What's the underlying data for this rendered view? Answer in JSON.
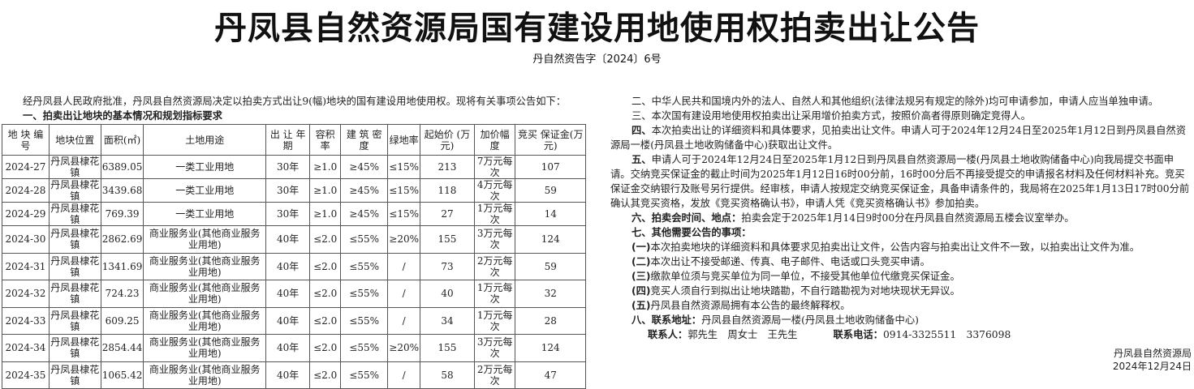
{
  "title": "丹凤县自然资源局国有建设用地使用权拍卖出让公告",
  "doc_number": "丹自然资告字〔2024〕6号",
  "intro": "经丹凤县人民政府批准，丹凤县自然资源局决定以拍卖方式出让9(幅)地块的国有建设用地使用权。现将有关事项公告如下：",
  "section1_title": "一、拍卖出让地块的基本情况和规划指标要求",
  "table": {
    "headers": [
      "地 块 编 号",
      "地块位置",
      "面积(㎡)",
      "土地用途",
      "出 让 年 期",
      "容积率",
      "建 筑 密 度",
      "绿地率",
      "起始价 (万元)",
      "加价幅度",
      "竞买 保证金(万元)"
    ],
    "rows": [
      [
        "2024-27",
        "丹凤县棣花镇",
        "6389.05",
        "一类工业用地",
        "30年",
        "≥1.0",
        "≥45%",
        "≤15%",
        "213",
        "7万元每次",
        "107"
      ],
      [
        "2024-28",
        "丹凤县棣花镇",
        "3439.68",
        "一类工业用地",
        "30年",
        "≥1.0",
        "≥45%",
        "≤15%",
        "118",
        "4万元每次",
        "59"
      ],
      [
        "2024-29",
        "丹凤县棣花镇",
        "769.39",
        "一类工业用地",
        "30年",
        "≥1.0",
        "≥45%",
        "≤15%",
        "27",
        "1万元每次",
        "14"
      ],
      [
        "2024-30",
        "丹凤县棣花镇",
        "2862.69",
        "商业服务业(其他商业服务业用地)",
        "40年",
        "≤2.0",
        "≤55%",
        "≥20%",
        "155",
        "3万元每次",
        "124"
      ],
      [
        "2024-31",
        "丹凤县棣花镇",
        "1341.69",
        "商业服务业(其他商业服务业用地)",
        "40年",
        "≤2.0",
        "≤55%",
        "/",
        "73",
        "2万元每次",
        "59"
      ],
      [
        "2024-32",
        "丹凤县棣花镇",
        "724.23",
        "商业服务业(其他商业服务业用地)",
        "40年",
        "≤2.0",
        "≤55%",
        "/",
        "40",
        "1万元每次",
        "32"
      ],
      [
        "2024-33",
        "丹凤县棣花镇",
        "609.25",
        "商业服务业(其他商业服务业用地)",
        "40年",
        "≤2.0",
        "≤55%",
        "/",
        "34",
        "1万元每次",
        "28"
      ],
      [
        "2024-34",
        "丹凤县棣花镇",
        "2854.44",
        "商业服务业(其他商业服务业用地)",
        "40年",
        "≤2.0",
        "≤55%",
        "≥20%",
        "155",
        "3万元每次",
        "124"
      ],
      [
        "2024-35",
        "丹凤县棣花镇",
        "1065.42",
        "商业服务业(其他商业服务业用地)",
        "40年",
        "≤2.0",
        "≤55%",
        "/",
        "58",
        "2万元每次",
        "47"
      ]
    ]
  },
  "right": {
    "s2": "二、中华人民共和国境内外的法人、自然人和其他组织(法律法规另有规定的除外)均可申请参加，申请人应当单独申请。",
    "s3": "三、本次国有建设用地使用权拍卖出让采用增价拍卖方式，按照价高者得原则确定竞得人。",
    "s4_head": "四、",
    "s4": "本次拍卖出让的详细资料和具体要求，见拍卖出让文件。申请人可于2024年12月24日至2025年1月12日到丹凤县自然资源局一楼(丹凤县土地收购储备中心)获取出让文件。",
    "s5_head": "五、",
    "s5": "申请人可于2024年12月24日至2025年1月12日到丹凤县自然资源局一楼(丹凤县土地收购储备中心)向我局提交书面申请。交纳竞买保证金的截止时间为2025年1月12日16时00分前，16时00分后不再接受提交的申请报名材料及任何材料补充。竞买保证金交纳银行及账号另行提供。经审核，申请人按规定交纳竞买保证金，具备申请条件的，我局将在2025年1月13日17时00分前确认其竞买资格，发放《竞买资格确认书》，申请人凭《竞买资格确认书》参加拍卖。",
    "s6_head": "六、拍卖会时间、地点：",
    "s6": "拍卖会定于2025年1月14日9时00分在丹凤县自然资源局五楼会议室举办。",
    "s7_head": "七、其他需要公告的事项：",
    "s7_items": [
      {
        "n": "(一)",
        "t": "本次拍卖地块的详细资料和具体要求见拍卖出让文件，公告内容与拍卖出让文件不一致，以拍卖出让文件为准。"
      },
      {
        "n": "(二)",
        "t": "本次出让不接受邮递、传真、电子邮件、电话或口头竞买申请。"
      },
      {
        "n": "(三)",
        "t": "缴款单位须与竞买单位为同一单位，不接受其他单位代缴竞买保证金。"
      },
      {
        "n": "(四)",
        "t": "竞买人须自行到拟出让地块踏勘，不自行踏勘视为对地块现状无异议。"
      },
      {
        "n": "(五)",
        "t": "丹凤县自然资源局拥有本公告的最终解释权。"
      }
    ],
    "s8_head": "八、联系地址：",
    "s8": "丹凤县自然资源局一楼(丹凤县土地收购储备中心)",
    "contact_label": "联系人：",
    "contact": "郭先生　周女士　王先生",
    "phone_label": "联系电话：",
    "phone": "0914-3325511　3376098",
    "signer": "丹凤县自然资源局",
    "date": "2024年12月24日"
  }
}
